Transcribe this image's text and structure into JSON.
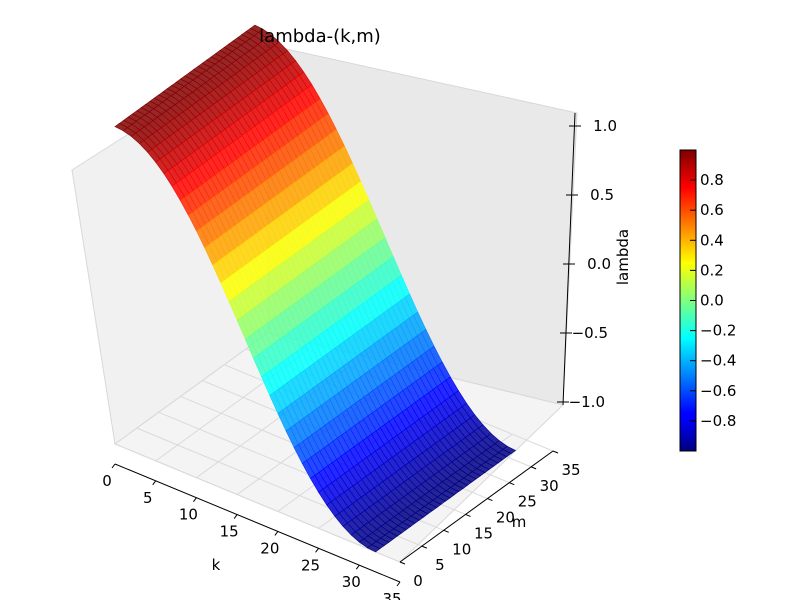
{
  "chart_data": {
    "type": "surface3d",
    "title": "lambda-(k,m)",
    "xlabel": "k",
    "ylabel": "m",
    "zlabel": "lambda",
    "x_ticks": [
      "0",
      "5",
      "10",
      "15",
      "20",
      "25",
      "30",
      "35"
    ],
    "y_ticks": [
      "0",
      "5",
      "10",
      "15",
      "20",
      "25",
      "30",
      "35"
    ],
    "z_ticks": [
      "−1.0",
      "−0.5",
      "0.0",
      "0.5",
      "1.0"
    ],
    "xlim": [
      0,
      35
    ],
    "ylim": [
      0,
      35
    ],
    "zlim": [
      -1,
      1
    ],
    "x_range": [
      0,
      32
    ],
    "y_range": [
      0,
      32
    ],
    "z_function": "cos(pi*k/32)",
    "colormap": "jet",
    "colorbar": {
      "min": -1,
      "max": 1,
      "ticks": [
        "0.8",
        "0.6",
        "0.4",
        "0.2",
        "0.0",
        "−0.2",
        "−0.4",
        "−0.6",
        "−0.8"
      ],
      "tick_values": [
        0.8,
        0.6,
        0.4,
        0.2,
        0.0,
        -0.2,
        -0.4,
        -0.6,
        -0.8
      ]
    },
    "grid": true
  }
}
